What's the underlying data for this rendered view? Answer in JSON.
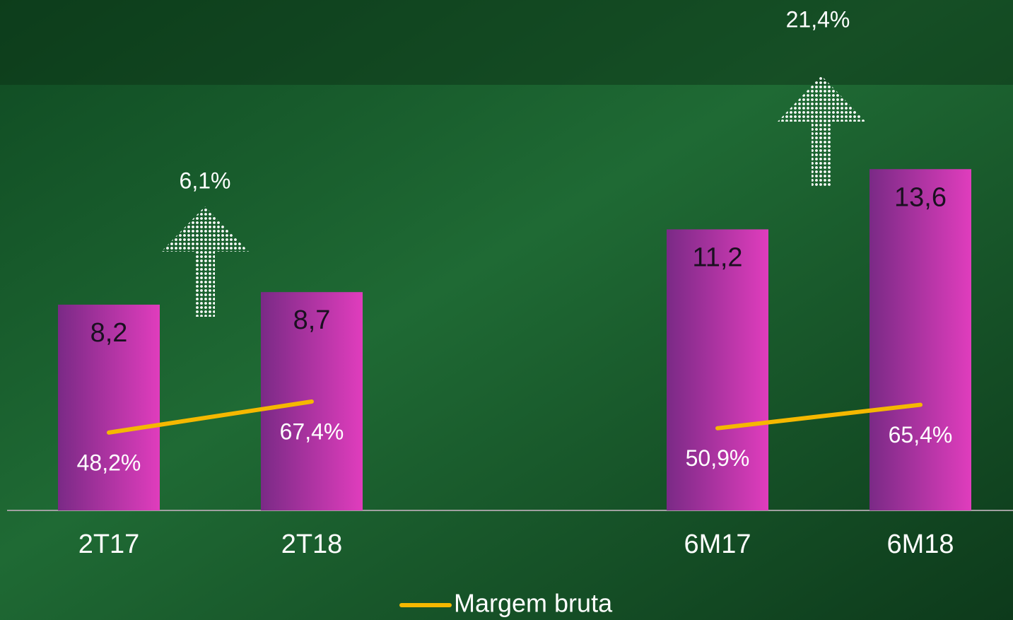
{
  "chart_data": {
    "type": "bar",
    "categories": [
      "2T17",
      "2T18",
      null,
      "6M17",
      "6M18"
    ],
    "values": [
      8.2,
      8.7,
      null,
      11.2,
      13.6
    ],
    "value_labels": [
      "8,2",
      "8,7",
      null,
      "11,2",
      "13,6"
    ],
    "ylim": [
      0,
      20.34
    ],
    "y2lim": [
      0,
      316
    ],
    "series": [
      {
        "name": "Margem bruta",
        "color": "#f5b800",
        "axis": "y2",
        "values": [
          48.2,
          67.4,
          null,
          50.9,
          65.4
        ],
        "value_labels": [
          "48,2%",
          "67,4%",
          null,
          "50,9%",
          "65,4%"
        ]
      }
    ],
    "annotations": [
      {
        "text": "6,1%"
      },
      {
        "text": "21,4%"
      }
    ]
  }
}
